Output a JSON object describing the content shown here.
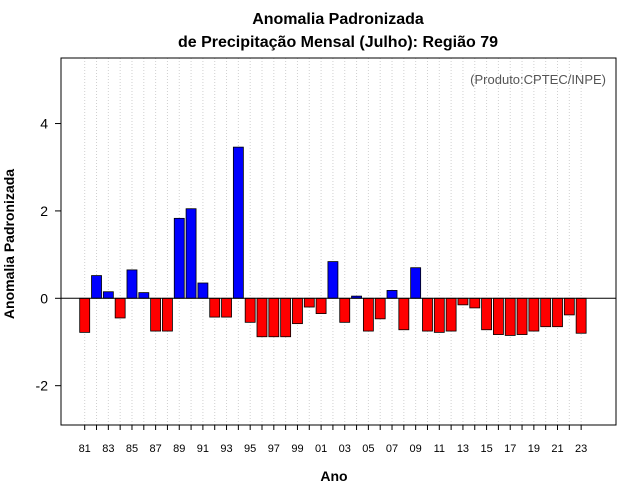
{
  "chart_data": {
    "type": "bar",
    "title": "Anomalia Padronizada",
    "subtitle": "de Precipitação Mensal (Julho): Região 79",
    "xlabel": "Ano",
    "ylabel": "Anomalia Padronizada",
    "annotation": "(Produto:CPTEC/INPE)",
    "ylim": [
      -2.9,
      5.5
    ],
    "yticks": [
      -2,
      0,
      2,
      4
    ],
    "ytick_labels": [
      "-2",
      "0",
      "2",
      "4"
    ],
    "grid": "vertical dotted per year",
    "legend": "none",
    "colors": {
      "positive": "#0000ff",
      "negative": "#ff0000",
      "zero_line": "#000000",
      "grid": "#d0d0d0"
    },
    "categories": [
      "81",
      "82",
      "83",
      "84",
      "85",
      "86",
      "87",
      "88",
      "89",
      "90",
      "91",
      "92",
      "93",
      "94",
      "95",
      "96",
      "97",
      "98",
      "99",
      "00",
      "01",
      "02",
      "03",
      "04",
      "05",
      "06",
      "07",
      "08",
      "09",
      "10",
      "11",
      "12",
      "13",
      "14",
      "15",
      "16",
      "17",
      "18",
      "19",
      "20",
      "21",
      "22",
      "23"
    ],
    "xtick_labels": [
      "81",
      "83",
      "85",
      "87",
      "89",
      "91",
      "93",
      "95",
      "97",
      "99",
      "01",
      "03",
      "05",
      "07",
      "09",
      "11",
      "13",
      "15",
      "17",
      "19",
      "21",
      "23"
    ],
    "values": [
      -0.78,
      0.52,
      0.15,
      -0.45,
      0.65,
      0.13,
      -0.75,
      -0.75,
      1.83,
      2.05,
      0.35,
      -0.43,
      -0.43,
      3.46,
      -0.55,
      -0.88,
      -0.88,
      -0.88,
      -0.58,
      -0.2,
      -0.35,
      0.84,
      -0.55,
      0.05,
      -0.75,
      -0.47,
      0.18,
      -0.72,
      0.7,
      -0.75,
      -0.78,
      -0.75,
      -0.15,
      -0.22,
      -0.72,
      -0.83,
      -0.85,
      -0.83,
      -0.75,
      -0.65,
      -0.65,
      -0.38,
      -0.8
    ]
  }
}
